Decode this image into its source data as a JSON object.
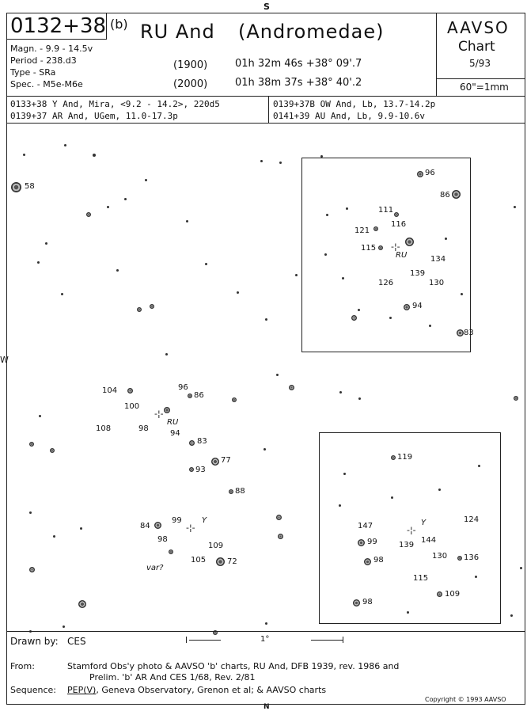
{
  "compass": {
    "top": "S",
    "bottom": "N",
    "left": "W"
  },
  "header": {
    "designation": "0132+38",
    "chart_type": "(b)",
    "star_name": "RU And",
    "constellation": "(Andromedae)",
    "org": "AAVSO",
    "chart_label": "Chart",
    "chart_date": "5/93",
    "scale": "60\"=1mm",
    "magn": "Magn. - 9.9 - 14.5v",
    "period": "Period - 238.d3",
    "type": "Type    - SRa",
    "spec": "Spec.  - M5e-M6e",
    "epoch1": "(1900)",
    "coord1": "01h 32m 46s  +38° 09'.7",
    "epoch2": "(2000)",
    "coord2": "01h 38m 37s  +38° 40'.2"
  },
  "nearby": {
    "l1": "0133+38  Y And, Mira, <9.2 - 14.2>, 220d5",
    "l2": "0139+37  AR And, UGem, 11.0-17.3p",
    "r1": "0139+37B OW And, Lb, 13.7-14.2p",
    "r2": "0141+39  AU And, Lb, 9.9-10.6v"
  },
  "field_labels": {
    "m58": "58",
    "m104": "104",
    "m100": "100",
    "m96": "96",
    "m86": "86",
    "ru": "RU",
    "m108": "108",
    "m98": "98",
    "m94": "94",
    "m83": "83",
    "m77": "77",
    "m93": "93",
    "m88": "88",
    "m84": "84",
    "m99": "99",
    "y": "Y",
    "m98b": "98",
    "m109": "109",
    "var": "var?",
    "m105": "105",
    "m72": "72",
    "scalebar": "1°"
  },
  "inset1": {
    "m96": "96",
    "m86": "86",
    "m111": "111",
    "m116": "116",
    "m121": "121",
    "m115": "115",
    "ru": "RU",
    "m134": "134",
    "m139": "139",
    "m126": "126",
    "m130": "130",
    "m94": "94",
    "m83": "83"
  },
  "inset2": {
    "m119": "119",
    "m147": "147",
    "y": "Y",
    "m124": "124",
    "m99": "99",
    "m139": "139",
    "m144": "144",
    "m130": "130",
    "m136": "136",
    "m98": "98",
    "m115": "115",
    "m109": "109",
    "m98b": "98"
  },
  "footer": {
    "drawn_label": "Drawn by:",
    "drawn_value": "CES",
    "from_label": "From:",
    "from_l1": "Stamford Obs'y photo & AAVSO 'b' charts, RU And, DFB 1939, rev. 1986 and",
    "from_l2": "Prelim. 'b' AR And  CES 1/68, Rev. 2/81",
    "seq_label": "Sequence:",
    "seq_pep": "PEP(V)",
    "seq_rest": ", Geneva Observatory, Grenon et al; & AAVSO charts",
    "copyright": "Copyright © 1993 AAVSO"
  }
}
